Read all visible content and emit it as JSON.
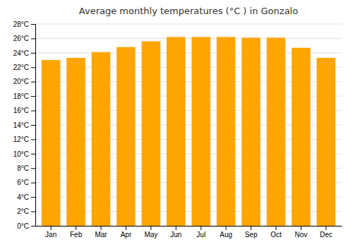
{
  "chart_data": {
    "type": "bar",
    "title": "Average monthly temperatures (°C ) in Gonzalo",
    "categories": [
      "Jan",
      "Feb",
      "Mar",
      "Apr",
      "May",
      "Jun",
      "Jul",
      "Aug",
      "Sep",
      "Oct",
      "Nov",
      "Dec"
    ],
    "values": [
      23.0,
      23.3,
      24.1,
      24.8,
      25.6,
      26.2,
      26.2,
      26.2,
      26.1,
      26.1,
      24.7,
      23.3
    ],
    "color": "#FFA500",
    "ylim": [
      0,
      28
    ],
    "yticks": [
      {
        "value": 0,
        "label": "0°C"
      },
      {
        "value": 2,
        "label": "2°C"
      },
      {
        "value": 4,
        "label": "4°C"
      },
      {
        "value": 6,
        "label": "6°C"
      },
      {
        "value": 8,
        "label": "8°C"
      },
      {
        "value": 10,
        "label": "10°C"
      },
      {
        "value": 12,
        "label": "12°C"
      },
      {
        "value": 14,
        "label": "14°C"
      },
      {
        "value": 16,
        "label": "16°C"
      },
      {
        "value": 18,
        "label": "18°C"
      },
      {
        "value": 20,
        "label": "20°C"
      },
      {
        "value": 22,
        "label": "22°C"
      },
      {
        "value": 24,
        "label": "24°C"
      },
      {
        "value": 26,
        "label": "26°C"
      },
      {
        "value": 28,
        "label": "28°C"
      }
    ],
    "grid": true
  }
}
